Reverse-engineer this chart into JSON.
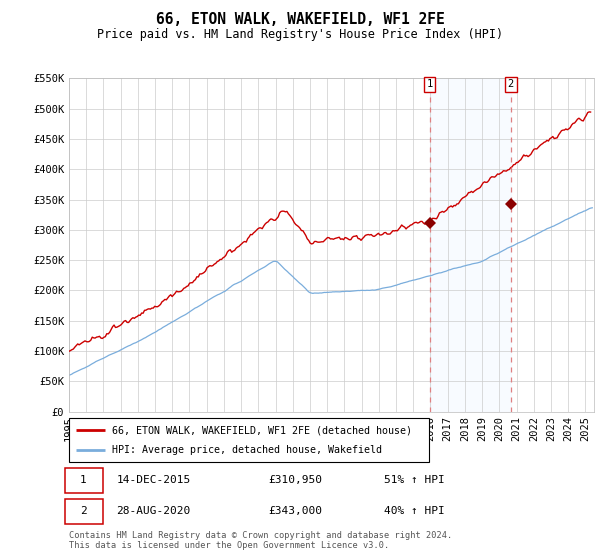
{
  "title": "66, ETON WALK, WAKEFIELD, WF1 2FE",
  "subtitle": "Price paid vs. HM Land Registry's House Price Index (HPI)",
  "ylim": [
    0,
    550000
  ],
  "yticks": [
    0,
    50000,
    100000,
    150000,
    200000,
    250000,
    300000,
    350000,
    400000,
    450000,
    500000,
    550000
  ],
  "ytick_labels": [
    "£0",
    "£50K",
    "£100K",
    "£150K",
    "£200K",
    "£250K",
    "£300K",
    "£350K",
    "£400K",
    "£450K",
    "£500K",
    "£550K"
  ],
  "xlim_start": 1995.0,
  "xlim_end": 2025.5,
  "sale1_x": 2015.958,
  "sale1_y": 310950,
  "sale2_x": 2020.667,
  "sale2_y": 343000,
  "sale1_date": "14-DEC-2015",
  "sale1_price": "£310,950",
  "sale1_hpi": "51% ↑ HPI",
  "sale2_date": "28-AUG-2020",
  "sale2_price": "£343,000",
  "sale2_hpi": "40% ↑ HPI",
  "red_line_color": "#cc0000",
  "blue_line_color": "#7aaddc",
  "marker_color": "#8b0000",
  "shaded_region_color": "#ddeeff",
  "dashed_line_color": "#e08080",
  "legend_label_red": "66, ETON WALK, WAKEFIELD, WF1 2FE (detached house)",
  "legend_label_blue": "HPI: Average price, detached house, Wakefield",
  "footnote": "Contains HM Land Registry data © Crown copyright and database right 2024.\nThis data is licensed under the Open Government Licence v3.0.",
  "grid_color": "#cccccc",
  "title_fontsize": 10.5,
  "subtitle_fontsize": 8.5,
  "tick_fontsize": 7.5
}
